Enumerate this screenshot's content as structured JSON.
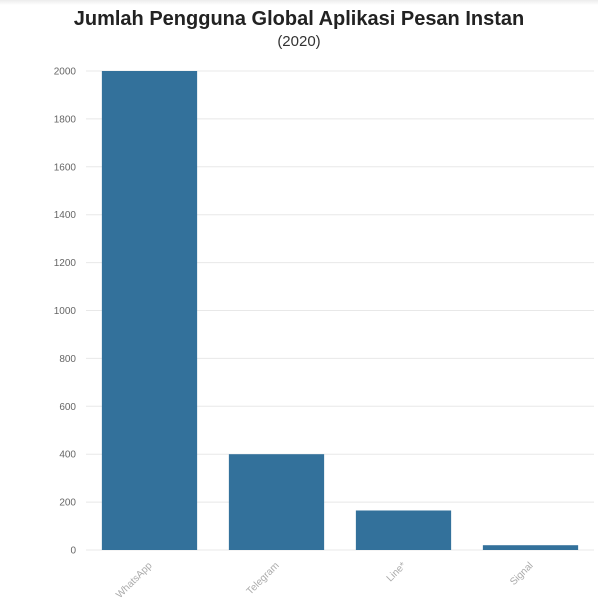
{
  "chart_data": {
    "type": "bar",
    "title": "Jumlah Pengguna Global Aplikasi Pesan Instan",
    "subtitle": "(2020)",
    "xlabel": "",
    "ylabel": "",
    "categories": [
      "WhatsApp",
      "Telegram",
      "Line*",
      "Signal"
    ],
    "values": [
      2000,
      400,
      165,
      20
    ],
    "ylim": [
      0,
      2000
    ],
    "yticks": [
      0,
      200,
      400,
      600,
      800,
      1000,
      1200,
      1400,
      1600,
      1800,
      2000
    ],
    "grid": true,
    "bar_color": "#33719b"
  }
}
